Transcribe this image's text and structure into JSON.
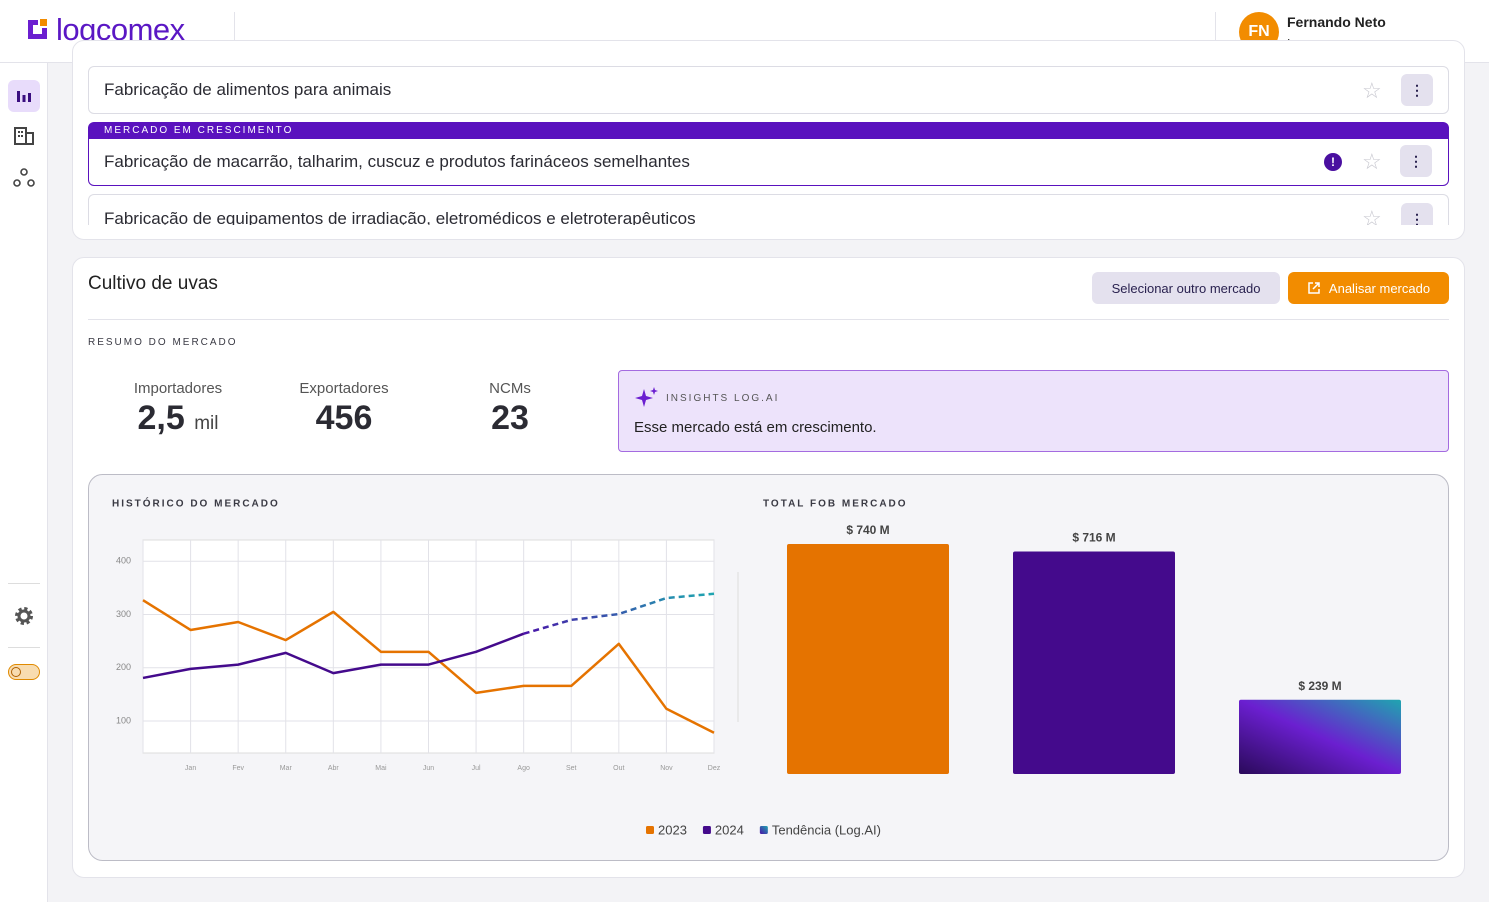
{
  "header": {
    "brand": "logcomex",
    "user": {
      "initials": "FN",
      "name": "Fernando Neto",
      "company": "Logcomex"
    }
  },
  "market_list": [
    {
      "label": "Fabricação de alimentos para animais"
    },
    {
      "badge": "MERCADO EM CRESCIMENTO",
      "label": "Fabricação de macarrão, talharim, cuscuz e produtos farináceos semelhantes"
    },
    {
      "label": "Fabricação de equipamentos de irradiação, eletromédicos e eletroterapêuticos"
    }
  ],
  "market": {
    "title": "Cultivo de uvas",
    "buttons": [
      "Selecionar outro mercado",
      "Analisar mercado"
    ],
    "summary_label": "RESUMO DO MERCADO",
    "stats": [
      {
        "label": "Importadores",
        "value": "2,5",
        "unit": "mil"
      },
      {
        "label": "Exportadores",
        "value": "456"
      },
      {
        "label": "NCMs",
        "value": "23"
      }
    ],
    "insight": {
      "label": "INSIGHTS LOG.AI",
      "text": "Esse mercado está em crescimento."
    }
  },
  "chart_data": [
    {
      "type": "line",
      "title": "HISTÓRICO DO MERCADO",
      "categories": [
        null,
        "Jan",
        "Fev",
        "Mar",
        "Abr",
        "Mai",
        "Jun",
        "Jul",
        "Ago",
        "Set",
        "Out",
        "Nov",
        "Dez"
      ],
      "series": [
        {
          "name": "2023",
          "color": "#e57300",
          "values": [
            327,
            271,
            286,
            252,
            305,
            230,
            230,
            153,
            166,
            166,
            245,
            123,
            78
          ]
        },
        {
          "name": "2024",
          "color": "#440a8c",
          "values": [
            181,
            198,
            206,
            228,
            190,
            206,
            206,
            230,
            264,
            null,
            null,
            null,
            null
          ]
        },
        {
          "name": "Tendência (Log.AI)",
          "color": [
            "#4a12a8",
            "#1fa5b0"
          ],
          "dashed": true,
          "values": [
            null,
            null,
            null,
            null,
            null,
            null,
            null,
            null,
            264,
            290,
            301,
            331,
            339
          ]
        }
      ],
      "ylim": [
        40,
        440
      ],
      "yticks": [
        100,
        200,
        300,
        400
      ],
      "grid": true
    },
    {
      "type": "bar",
      "title": "TOTAL FOB MERCADO",
      "values": [
        740,
        716,
        239
      ],
      "value_labels": [
        "$ 740 M",
        "$ 716 M",
        "$ 239 M"
      ],
      "colors": [
        "#e57300",
        "#440a8c",
        [
          "#2a0a5a",
          "#6b1fd0",
          "#1fa5b0"
        ]
      ]
    }
  ]
}
